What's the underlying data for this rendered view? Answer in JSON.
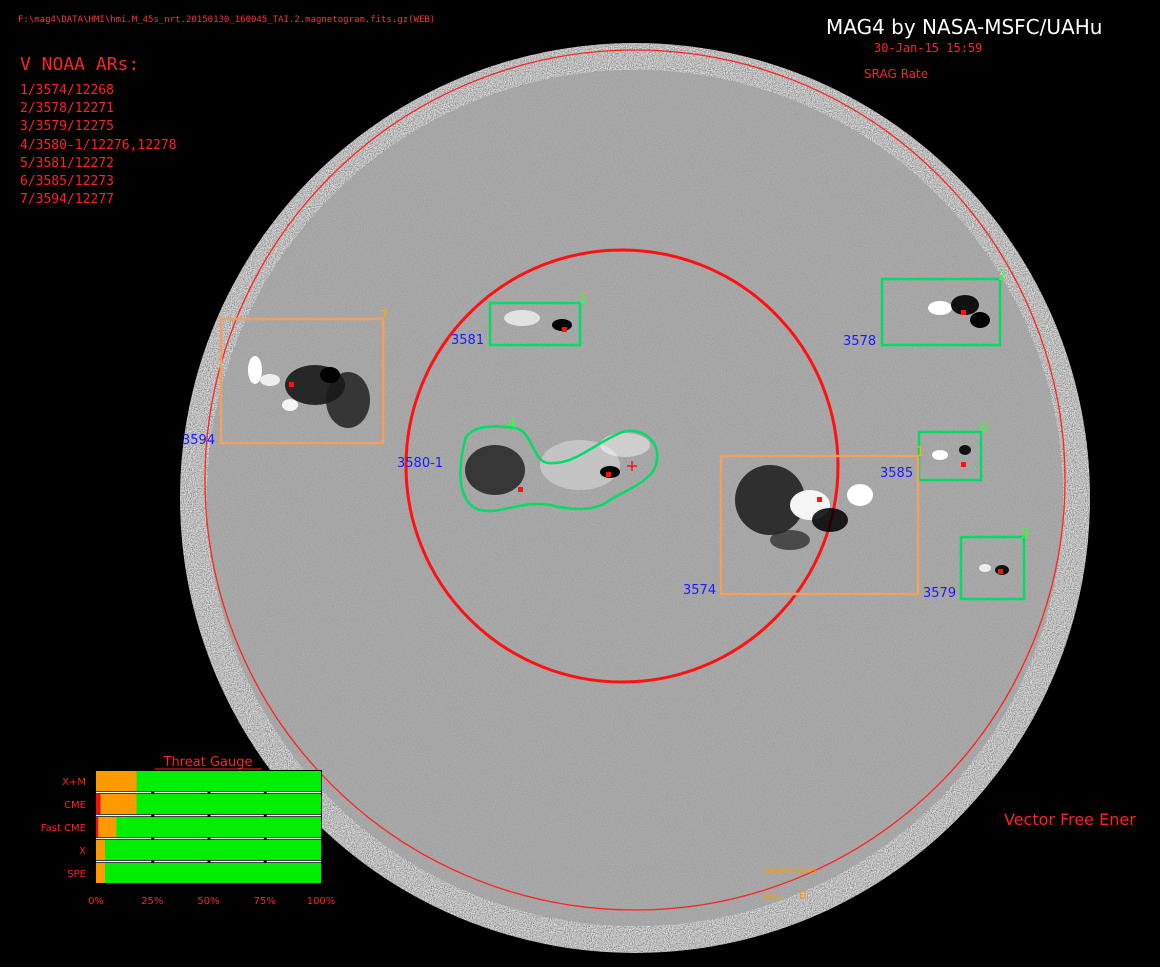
{
  "header": {
    "file_path": "F:\\mag4\\DATA\\HMI\\hmi.M_45s_nrt.20150130_160045_TAI.2.magnetogram.fits.gz(WEB)",
    "title": "MAG4 by NASA-MSFC/UAHu",
    "date": "30-Jan-15 15:59",
    "rate_label": "SRAG Rate"
  },
  "noaa_ars": {
    "heading": "V NOAA ARs:",
    "items": [
      "1/3574/12268",
      "2/3578/12271",
      "3/3579/12275",
      "4/3580-1/12276,12278",
      "5/3581/12272",
      "6/3585/12273",
      "7/3594/12277"
    ]
  },
  "regions": [
    {
      "number": "1",
      "ar": "3574",
      "type": "box",
      "color": "#f0a060"
    },
    {
      "number": "2",
      "ar": "3578",
      "type": "box",
      "color": "#00dd66"
    },
    {
      "number": "3",
      "ar": "3579",
      "type": "box",
      "color": "#00dd66"
    },
    {
      "number": "4",
      "ar": "3580-1",
      "type": "contour",
      "color": "#00dd66"
    },
    {
      "number": "5",
      "ar": "3581",
      "type": "box",
      "color": "#00dd66"
    },
    {
      "number": "6",
      "ar": "3585",
      "type": "box",
      "color": "#00dd66"
    },
    {
      "number": "7",
      "ar": "3594",
      "type": "box",
      "color": "#f0a060"
    }
  ],
  "threat_gauge": {
    "title": "Threat Gauge",
    "rows": [
      {
        "label": "X+M",
        "red": 0,
        "orange": 0.18
      },
      {
        "label": "CME",
        "red": 0.02,
        "orange": 0.18
      },
      {
        "label": "Fast CME",
        "red": 0.01,
        "orange": 0.09
      },
      {
        "label": "X",
        "red": 0,
        "orange": 0.04
      },
      {
        "label": "SPE",
        "red": 0,
        "orange": 0.04
      }
    ],
    "ticks": [
      "0%",
      "25%",
      "50%",
      "75%",
      "100%"
    ]
  },
  "footer": {
    "vector_free_energy_label": "Vector Free Ener",
    "latest_events_label": "Latest Events",
    "m5x_label": "M5X:",
    "m5x_value": "0"
  },
  "colors": {
    "label_red": "#ff2222",
    "ar_blue": "#1a1aff",
    "green_box": "#00dd66",
    "orange_box": "#f0a060",
    "number_green": "#33ff33",
    "number_orange": "#ffaa00",
    "gauge_green": "#00ee00",
    "gauge_orange": "#ff9900",
    "gauge_red": "#ee1111"
  }
}
